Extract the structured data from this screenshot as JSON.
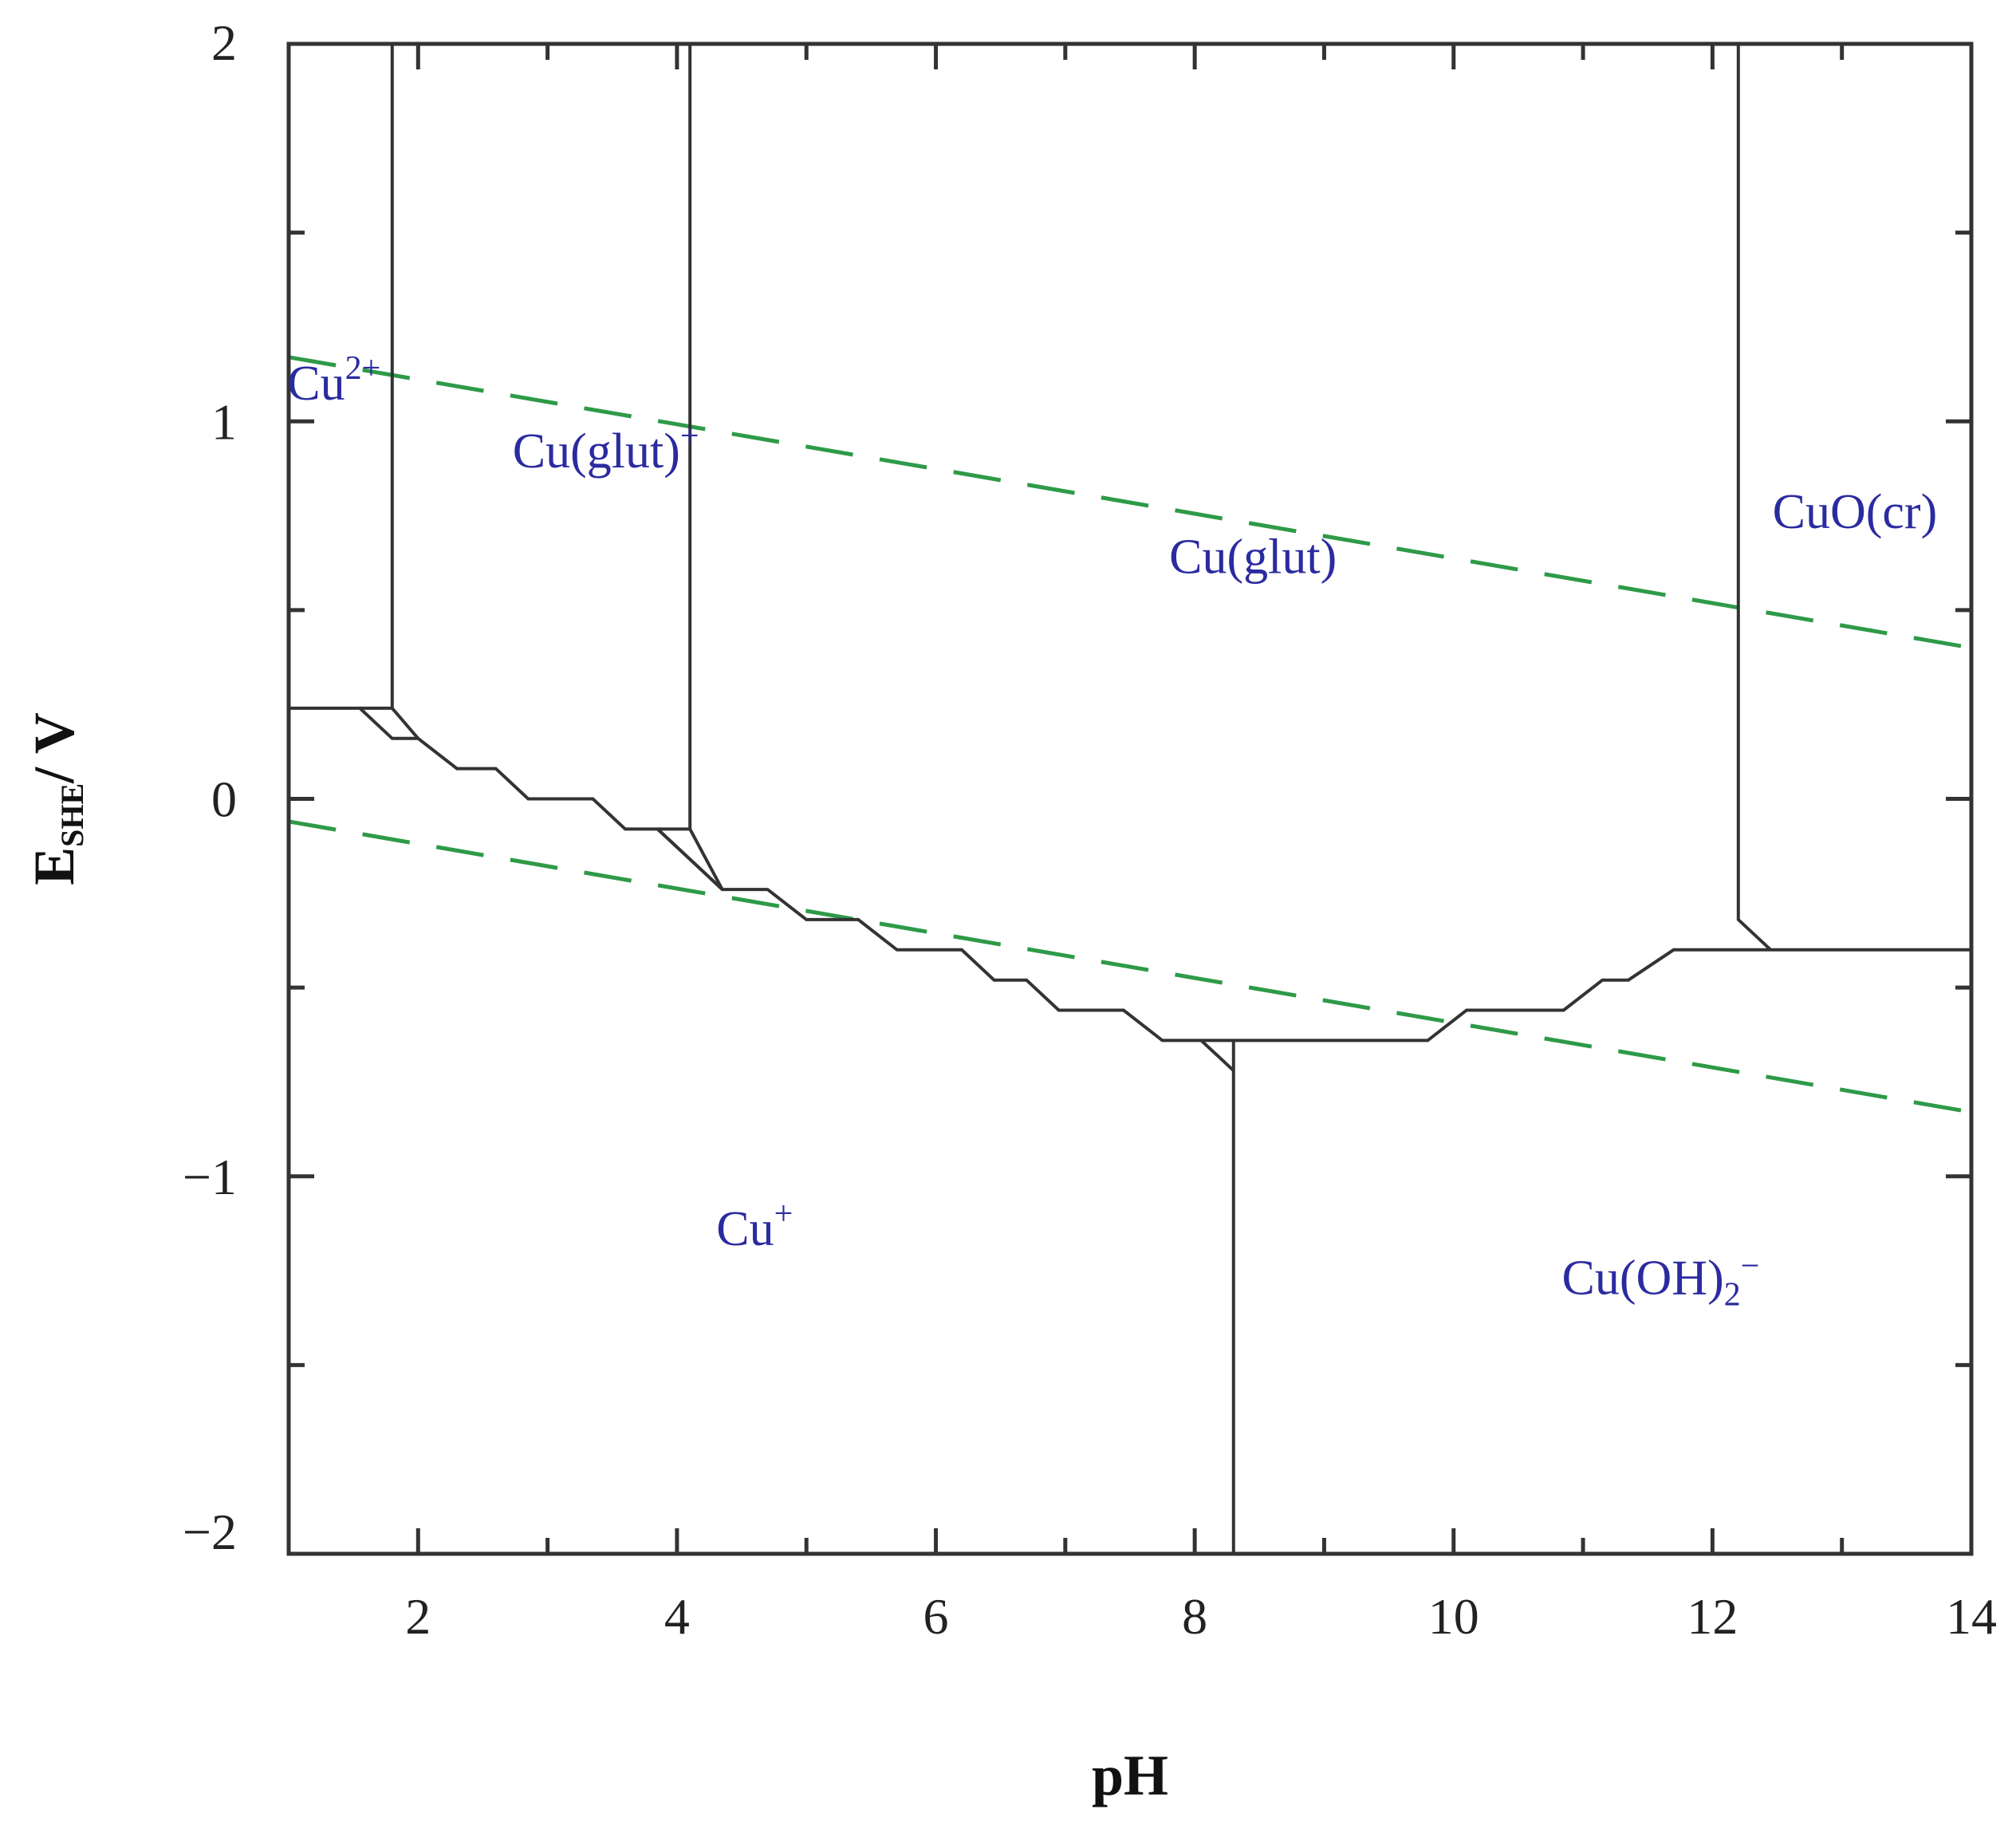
{
  "chart_data": {
    "type": "line",
    "xlabel": "pH",
    "ylabel_main": "E",
    "ylabel_sub": "SHE",
    "ylabel_rest": "/ V",
    "xlim": [
      1,
      14
    ],
    "ylim": [
      -2,
      2
    ],
    "x_ticks": [
      2,
      4,
      6,
      8,
      10,
      12,
      14
    ],
    "x_tick_labels": [
      "2",
      "4",
      "6",
      "8",
      "10",
      "12",
      "14"
    ],
    "x_minor_ticks": [
      1,
      3,
      5,
      7,
      9,
      11,
      13
    ],
    "y_ticks": [
      2,
      1,
      0,
      -1,
      -2
    ],
    "y_tick_labels": [
      "2",
      "1",
      "0",
      "−1",
      "−2"
    ],
    "y_minor_ticks": [
      1.5,
      0.5,
      -0.5,
      -1.5
    ],
    "water_lines": [
      {
        "points": [
          [
            1,
            1.17
          ],
          [
            14,
            0.4
          ]
        ]
      },
      {
        "points": [
          [
            1,
            -0.06
          ],
          [
            14,
            -0.83
          ]
        ]
      }
    ],
    "boundaries": [
      {
        "points": [
          [
            1.8,
            2.0
          ],
          [
            1.8,
            0.24
          ]
        ]
      },
      {
        "points": [
          [
            4.1,
            2.0
          ],
          [
            4.1,
            -0.08
          ]
        ]
      },
      {
        "points": [
          [
            12.2,
            2.0
          ],
          [
            12.2,
            -0.32
          ],
          [
            12.45,
            -0.4
          ]
        ]
      },
      {
        "points": [
          [
            1.0,
            0.24
          ],
          [
            1.55,
            0.24
          ],
          [
            1.8,
            0.16
          ],
          [
            2.0,
            0.16
          ],
          [
            2.3,
            0.08
          ],
          [
            2.6,
            0.08
          ],
          [
            2.85,
            0.0
          ],
          [
            3.35,
            0.0
          ],
          [
            3.6,
            -0.08
          ],
          [
            3.85,
            -0.08
          ],
          [
            4.35,
            -0.24
          ],
          [
            4.7,
            -0.24
          ],
          [
            5.0,
            -0.32
          ],
          [
            5.4,
            -0.32
          ],
          [
            5.7,
            -0.4
          ],
          [
            6.2,
            -0.4
          ],
          [
            6.45,
            -0.48
          ],
          [
            6.7,
            -0.48
          ],
          [
            6.95,
            -0.56
          ],
          [
            7.45,
            -0.56
          ],
          [
            7.75,
            -0.64
          ],
          [
            9.8,
            -0.64
          ],
          [
            10.1,
            -0.56
          ],
          [
            10.85,
            -0.56
          ],
          [
            11.15,
            -0.48
          ],
          [
            11.35,
            -0.48
          ],
          [
            11.7,
            -0.4
          ],
          [
            14.0,
            -0.4
          ]
        ]
      },
      {
        "points": [
          [
            1.55,
            0.24
          ],
          [
            1.8,
            0.24
          ],
          [
            2.0,
            0.16
          ]
        ]
      },
      {
        "points": [
          [
            3.85,
            -0.08
          ],
          [
            4.1,
            -0.08
          ],
          [
            4.35,
            -0.24
          ],
          [
            4.1,
            -0.16
          ],
          [
            3.85,
            -0.08
          ]
        ]
      },
      {
        "points": [
          [
            8.3,
            -2.0
          ],
          [
            8.3,
            -0.64
          ]
        ]
      },
      {
        "points": [
          [
            8.05,
            -0.64
          ],
          [
            8.3,
            -0.72
          ]
        ]
      }
    ],
    "region_labels": [
      {
        "base": "Cu",
        "sup": "2+",
        "sub": "",
        "x": 1.35,
        "y": 1.1
      },
      {
        "base": "Cu(glut)",
        "sup": "+",
        "sub": "",
        "x": 3.45,
        "y": 0.92
      },
      {
        "base": "Cu(glut)",
        "sup": "",
        "sub": "",
        "x": 8.45,
        "y": 0.64
      },
      {
        "base": "CuO(cr)",
        "sup": "",
        "sub": "",
        "x": 13.1,
        "y": 0.76
      },
      {
        "base": "Cu",
        "sup": "+",
        "sub": "",
        "x": 4.6,
        "y": -1.14
      },
      {
        "base": "Cu(OH)",
        "sup": "−",
        "sub": "2",
        "x": 11.6,
        "y": -1.27
      }
    ]
  }
}
